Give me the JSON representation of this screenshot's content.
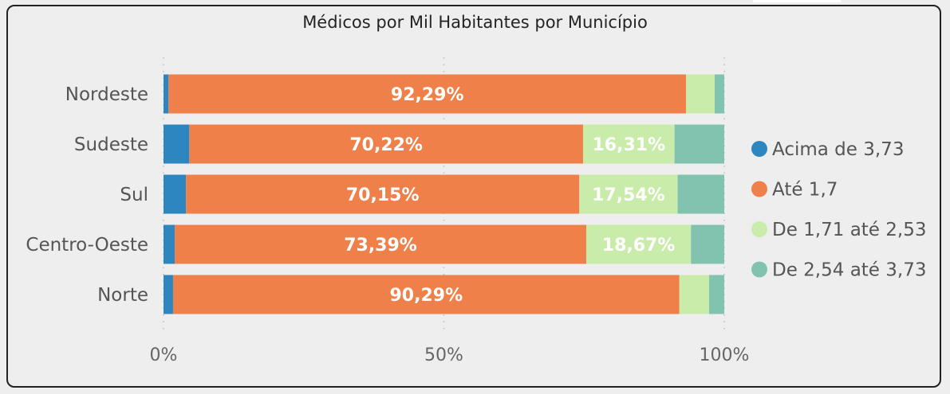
{
  "chart_data": {
    "type": "bar",
    "orientation": "horizontal",
    "stacked": "percent",
    "title": "Médicos por Mil Habitantes por Município",
    "categories": [
      "Nordeste",
      "Sudeste",
      "Sul",
      "Centro-Oeste",
      "Norte"
    ],
    "series": [
      {
        "name": "Acima de 3,73",
        "color": "#2e86c1",
        "values": [
          0.9,
          4.6,
          4.0,
          2.0,
          1.7
        ]
      },
      {
        "name": "Até 1,7",
        "color": "#f0804a",
        "values": [
          92.29,
          70.22,
          70.15,
          73.39,
          90.29
        ]
      },
      {
        "name": "De 1,71 até 2,53",
        "color": "#c9ecaa",
        "values": [
          5.1,
          16.31,
          17.54,
          18.67,
          5.3
        ]
      },
      {
        "name": "De 2,54 até 3,73",
        "color": "#82c3b0",
        "values": [
          1.71,
          8.87,
          8.31,
          5.94,
          2.71
        ]
      }
    ],
    "data_labels": [
      {
        "category": "Nordeste",
        "series": "Até 1,7",
        "text": "92,29%"
      },
      {
        "category": "Sudeste",
        "series": "Até 1,7",
        "text": "70,22%"
      },
      {
        "category": "Sudeste",
        "series": "De 1,71 até 2,53",
        "text": "16,31%"
      },
      {
        "category": "Sul",
        "series": "Até 1,7",
        "text": "70,15%"
      },
      {
        "category": "Sul",
        "series": "De 1,71 até 2,53",
        "text": "17,54%"
      },
      {
        "category": "Centro-Oeste",
        "series": "Até 1,7",
        "text": "73,39%"
      },
      {
        "category": "Centro-Oeste",
        "series": "De 1,71 até 2,53",
        "text": "18,67%"
      },
      {
        "category": "Norte",
        "series": "Até 1,7",
        "text": "90,29%"
      }
    ],
    "x_ticks": [
      {
        "value": 0,
        "label": "0%"
      },
      {
        "value": 50,
        "label": "50%"
      },
      {
        "value": 100,
        "label": "100%"
      }
    ],
    "xlim": [
      0,
      100
    ],
    "grid": true,
    "legend_position": "right"
  }
}
